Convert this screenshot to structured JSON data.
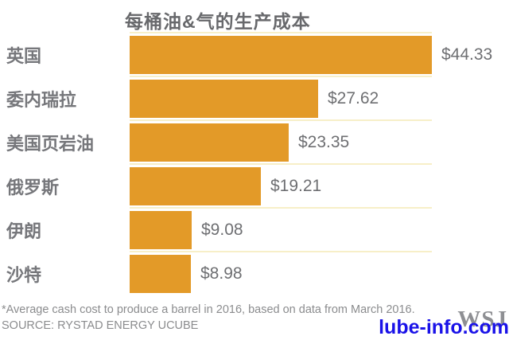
{
  "chart_data": {
    "type": "bar",
    "orientation": "horizontal",
    "title": "每桶油&气的生产成本",
    "categories": [
      "英国",
      "委内瑞拉",
      "美国页岩油",
      "俄罗斯",
      "伊朗",
      "沙特"
    ],
    "values": [
      44.33,
      27.62,
      23.35,
      19.21,
      9.08,
      8.98
    ],
    "value_labels": [
      "$44.33",
      "$27.62",
      "$23.35",
      "$19.21",
      "$9.08",
      "$8.98"
    ],
    "xlabel": "",
    "ylabel": "",
    "xlim": [
      0,
      44.33
    ],
    "grid": "pale-yellow row separator hairlines",
    "legend": "none",
    "colors": {
      "bar": "#E39A28",
      "gridline": "#F7EFC8",
      "title_text": "#68696C",
      "category_text": "#76777B",
      "value_text": "#6E6F72",
      "footnote_text": "#8B8C8E",
      "watermark_blue": "#1A12E8",
      "wsj_gray": "#8E8F93"
    }
  },
  "footer": {
    "footnote": "*Average cash cost to produce a barrel in 2016, based on data from March 2016.",
    "source": "SOURCE: RYSTAD ENERGY UCUBE"
  },
  "watermarks": {
    "site": "lube-info.com",
    "logo": "WSJ"
  }
}
